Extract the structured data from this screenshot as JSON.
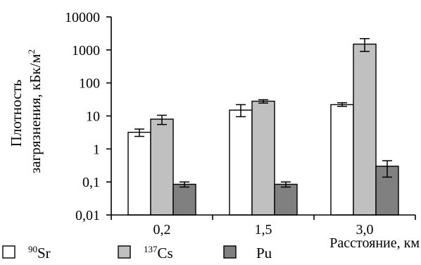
{
  "chart_data": {
    "type": "bar",
    "ylabel_line1": "Плотность",
    "ylabel_line2": "загрязнения, кБк/м",
    "ylabel_sup": "2",
    "xlabel": "Расстояние, км",
    "yscale": "log",
    "ylim": [
      0.01,
      10000
    ],
    "yticks": [
      "0,01",
      "0,1",
      "1",
      "10",
      "100",
      "1000",
      "10000"
    ],
    "categories": [
      "0,2",
      "1,5",
      "3,0"
    ],
    "series": [
      {
        "name": "Sr",
        "sup": "90",
        "color": "#ffffff",
        "values": [
          3.2,
          15,
          22
        ],
        "err_low": [
          2.4,
          9.5,
          19.5
        ],
        "err_high": [
          4.0,
          22,
          25
        ]
      },
      {
        "name": "Cs",
        "sup": "137",
        "color": "#c0c0c0",
        "values": [
          8,
          28,
          1500
        ],
        "err_low": [
          5.5,
          24.5,
          900
        ],
        "err_high": [
          10.5,
          31,
          2200
        ]
      },
      {
        "name": "Pu",
        "sup": "",
        "color": "#808080",
        "values": [
          0.085,
          0.085,
          0.3
        ],
        "err_low": [
          0.07,
          0.07,
          0.14
        ],
        "err_high": [
          0.1,
          0.1,
          0.44
        ]
      }
    ],
    "grid": false,
    "legend": "bottom"
  }
}
